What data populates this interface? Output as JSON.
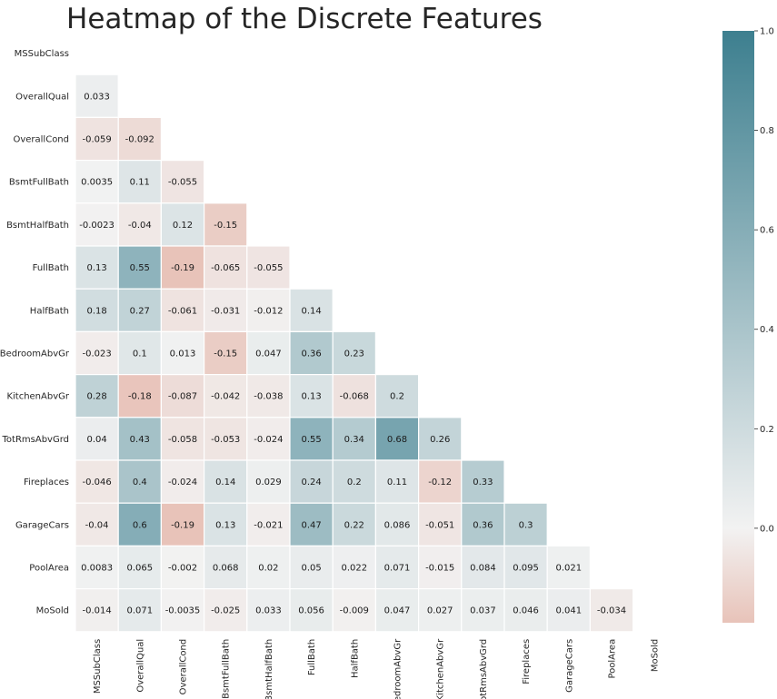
{
  "chart_data": {
    "type": "heatmap",
    "title": "Heatmap of the Discrete Features",
    "xlabel": "",
    "ylabel": "",
    "variables": [
      "MSSubClass",
      "OverallQual",
      "OverallCond",
      "BsmtFullBath",
      "BsmtHalfBath",
      "FullBath",
      "HalfBath",
      "BedroomAbvGr",
      "KitchenAbvGr",
      "TotRmsAbvGrd",
      "Fireplaces",
      "GarageCars",
      "PoolArea",
      "MoSold"
    ],
    "mask": "upper-triangle-including-diagonal",
    "lower_triangle_rows": [
      [],
      [
        "0.033"
      ],
      [
        "-0.059",
        "-0.092"
      ],
      [
        "0.0035",
        "0.11",
        "-0.055"
      ],
      [
        "-0.0023",
        "-0.04",
        "0.12",
        "-0.15"
      ],
      [
        "0.13",
        "0.55",
        "-0.19",
        "-0.065",
        "-0.055"
      ],
      [
        "0.18",
        "0.27",
        "-0.061",
        "-0.031",
        "-0.012",
        "0.14"
      ],
      [
        "-0.023",
        "0.1",
        "0.013",
        "-0.15",
        "0.047",
        "0.36",
        "0.23"
      ],
      [
        "0.28",
        "-0.18",
        "-0.087",
        "-0.042",
        "-0.038",
        "0.13",
        "-0.068",
        "0.2"
      ],
      [
        "0.04",
        "0.43",
        "-0.058",
        "-0.053",
        "-0.024",
        "0.55",
        "0.34",
        "0.68",
        "0.26"
      ],
      [
        "-0.046",
        "0.4",
        "-0.024",
        "0.14",
        "0.029",
        "0.24",
        "0.2",
        "0.11",
        "-0.12",
        "0.33"
      ],
      [
        "-0.04",
        "0.6",
        "-0.19",
        "0.13",
        "-0.021",
        "0.47",
        "0.22",
        "0.086",
        "-0.051",
        "0.36",
        "0.3"
      ],
      [
        "0.0083",
        "0.065",
        "-0.002",
        "0.068",
        "0.02",
        "0.05",
        "0.022",
        "0.071",
        "-0.015",
        "0.084",
        "0.095",
        "0.021"
      ],
      [
        "-0.014",
        "0.071",
        "-0.0035",
        "-0.025",
        "0.033",
        "0.056",
        "-0.009",
        "0.047",
        "0.027",
        "0.037",
        "0.046",
        "0.041",
        "-0.034"
      ]
    ],
    "colorbar": {
      "vmin": -0.19,
      "vmax": 1.0,
      "center": 0,
      "ticks": [
        "0.0",
        "0.2",
        "0.4",
        "0.6",
        "0.8",
        "1.0"
      ],
      "colors": {
        "negative": "#e8c3b9",
        "center": "#f2f2f2",
        "positive": "#3d7f8f"
      }
    },
    "grid": false,
    "legend": "colorbar-right"
  }
}
